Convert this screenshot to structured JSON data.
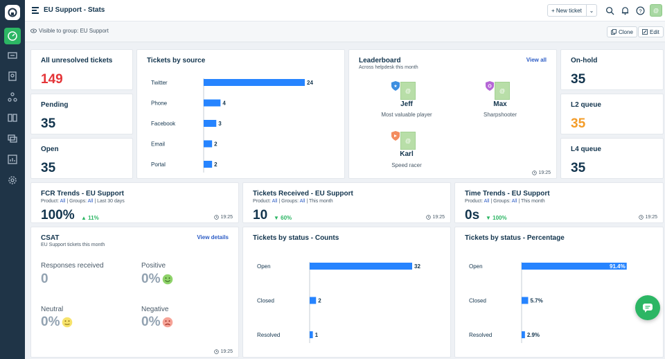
{
  "header": {
    "title": "EU Support - Stats",
    "new_ticket_label": "+ New ticket",
    "avatar_initial": "@"
  },
  "subheader": {
    "visibility": "Visible to group: EU Support",
    "clone_label": "Clone",
    "edit_label": "Edit"
  },
  "cards": {
    "all_unresolved": {
      "title": "All unresolved tickets",
      "value": "149",
      "color": "#e43538"
    },
    "pending": {
      "title": "Pending",
      "value": "35"
    },
    "open": {
      "title": "Open",
      "value": "35"
    },
    "on_hold": {
      "title": "On-hold",
      "value": "35"
    },
    "l2_queue": {
      "title": "L2 queue",
      "value": "35",
      "color": "#f39c28"
    },
    "l4_queue": {
      "title": "L4 queue",
      "value": "35"
    }
  },
  "tickets_by_source": {
    "title": "Tickets by source",
    "chart_data": {
      "type": "bar",
      "categories": [
        "Twitter",
        "Phone",
        "Facebook",
        "Email",
        "Portal"
      ],
      "values": [
        24,
        4,
        3,
        2,
        2
      ],
      "title": "Tickets by source"
    }
  },
  "leaderboard": {
    "title": "Leaderboard",
    "subtitle": "Across helpdesk this month",
    "view_all": "View all",
    "time": "19:25",
    "avatar_initial": "@",
    "players": [
      {
        "name": "Jeff",
        "role": "Most valuable player",
        "badge_color": "#3d8fe0"
      },
      {
        "name": "Max",
        "role": "Sharpshooter",
        "badge_color": "#b566d6"
      },
      {
        "name": "Karl",
        "role": "Speed racer",
        "badge_color": "#f38c5e"
      }
    ]
  },
  "fcr": {
    "title": "FCR Trends - EU Support",
    "meta_product": "Product:",
    "meta_all1": "All",
    "meta_groups": "| Groups:",
    "meta_all2": "All",
    "meta_period": "| Last 30 days",
    "value": "100%",
    "trend": "▲ 11%",
    "time": "19:25"
  },
  "received": {
    "title": "Tickets Received - EU Support",
    "meta_product": "Product:",
    "meta_all1": "All",
    "meta_groups": "| Groups:",
    "meta_all2": "All",
    "meta_period": "| This month",
    "value": "10",
    "trend": "▼ 60%",
    "time": "19:25"
  },
  "time_trends": {
    "title": "Time Trends - EU Support",
    "meta_product": "Product:",
    "meta_all1": "All",
    "meta_groups": "| Groups:",
    "meta_all2": "All",
    "meta_period": "| This month",
    "value": "0s",
    "trend": "▼ 100%",
    "time": "19:25"
  },
  "csat": {
    "title": "CSAT",
    "subtitle": "EU Support tickets this month",
    "view_details": "View details",
    "responses_label": "Responses received",
    "responses_value": "0",
    "positive_label": "Positive",
    "positive_value": "0%",
    "neutral_label": "Neutral",
    "neutral_value": "0%",
    "negative_label": "Negative",
    "negative_value": "0%",
    "time": "19:25"
  },
  "status_counts": {
    "title": "Tickets by status - Counts",
    "chart_data": {
      "type": "bar",
      "categories": [
        "Open",
        "Closed",
        "Resolved"
      ],
      "values": [
        32,
        2,
        1
      ],
      "title": "Tickets by status - Counts"
    }
  },
  "status_pct": {
    "title": "Tickets by status - Percentage",
    "chart_data": {
      "type": "bar",
      "categories": [
        "Open",
        "Closed",
        "Resolved"
      ],
      "values": [
        91.4,
        5.7,
        2.9
      ],
      "labels": [
        "91.4%",
        "5.7%",
        "2.9%"
      ],
      "title": "Tickets by status - Percentage"
    }
  }
}
